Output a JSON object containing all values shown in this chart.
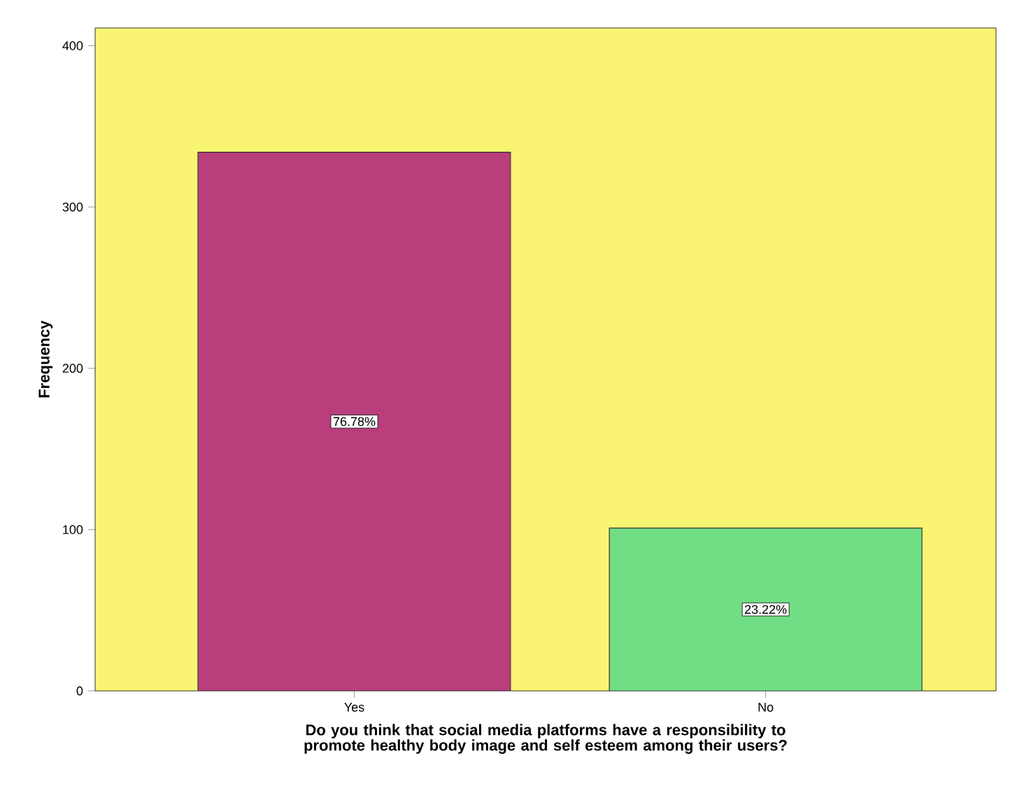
{
  "chart_data": {
    "type": "bar",
    "categories": [
      "Yes",
      "No"
    ],
    "values": [
      334,
      101
    ],
    "colors": [
      "#b93e7b",
      "#71de85"
    ],
    "annotations": [
      "76.78%",
      "23.22%"
    ],
    "xlabel": "Do you think that social media platforms have a responsibility to promote healthy body image and self esteem among their users?",
    "ylabel": "Frequency",
    "ylim": [
      0,
      411
    ],
    "yticks": [
      0,
      100,
      200,
      300,
      400
    ],
    "grid": false
  }
}
